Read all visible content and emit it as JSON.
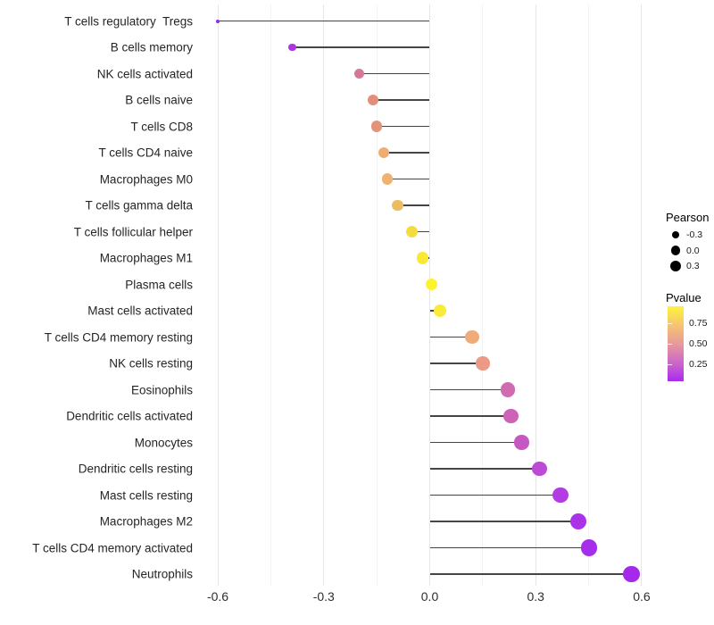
{
  "chart_data": {
    "type": "scatter",
    "subtype": "lollipop",
    "title": "",
    "xlabel": "",
    "ylabel": "",
    "xlim": [
      -0.66,
      0.66
    ],
    "x_ticks": [
      -0.6,
      -0.3,
      0.0,
      0.3,
      0.6
    ],
    "x_tick_labels": [
      "-0.6",
      "-0.3",
      "0.0",
      "0.3",
      "0.6"
    ],
    "grid": "vertical major and minor, no horizontal",
    "legend_position": "right",
    "size_encoding": "Pearson",
    "color_encoding": "Pvalue",
    "points": [
      {
        "label": "T cells regulatory  Tregs",
        "pearson": -0.6,
        "color": "#9b27e6"
      },
      {
        "label": "B cells memory",
        "pearson": -0.39,
        "color": "#ae36e2"
      },
      {
        "label": "NK cells activated",
        "pearson": -0.2,
        "color": "#d9779b"
      },
      {
        "label": "B cells naive",
        "pearson": -0.16,
        "color": "#e28f7a"
      },
      {
        "label": "T cells CD8",
        "pearson": -0.15,
        "color": "#e4937b"
      },
      {
        "label": "T cells CD4 naive",
        "pearson": -0.13,
        "color": "#efad72"
      },
      {
        "label": "Macrophages M0",
        "pearson": -0.12,
        "color": "#f0b271"
      },
      {
        "label": "T cells gamma delta",
        "pearson": -0.09,
        "color": "#ebbc62"
      },
      {
        "label": "T cells follicular helper",
        "pearson": -0.05,
        "color": "#f4dc40"
      },
      {
        "label": "Macrophages M1",
        "pearson": -0.02,
        "color": "#f8e935"
      },
      {
        "label": "Plasma cells",
        "pearson": 0.005,
        "color": "#fcf32a"
      },
      {
        "label": "Mast cells activated",
        "pearson": 0.03,
        "color": "#f9eb38"
      },
      {
        "label": "T cells CD4 memory resting",
        "pearson": 0.12,
        "color": "#efac79"
      },
      {
        "label": "NK cells resting",
        "pearson": 0.15,
        "color": "#eb9a86"
      },
      {
        "label": "Eosinophils",
        "pearson": 0.22,
        "color": "#d16bb1"
      },
      {
        "label": "Dendritic cells activated",
        "pearson": 0.23,
        "color": "#ce62b7"
      },
      {
        "label": "Monocytes",
        "pearson": 0.26,
        "color": "#c659c1"
      },
      {
        "label": "Dendritic cells resting",
        "pearson": 0.31,
        "color": "#bc4ad4"
      },
      {
        "label": "Mast cells resting",
        "pearson": 0.37,
        "color": "#b23ce1"
      },
      {
        "label": "Macrophages M2",
        "pearson": 0.42,
        "color": "#aa33e7"
      },
      {
        "label": "T cells CD4 memory activated",
        "pearson": 0.45,
        "color": "#a62de9"
      },
      {
        "label": "Neutrophils",
        "pearson": 0.57,
        "color": "#a429ea"
      }
    ]
  },
  "legend": {
    "pearson": {
      "title": "Pearson",
      "entries": [
        {
          "label": "-0.3",
          "radius": 4.2
        },
        {
          "label": "0.0",
          "radius": 5.2
        },
        {
          "label": "0.3",
          "radius": 6.0
        }
      ],
      "dot_color": "#000000"
    },
    "pvalue": {
      "title": "Pvalue",
      "ticks": [
        "0.75",
        "0.50",
        "0.25"
      ],
      "tick_values": [
        0.75,
        0.5,
        0.25
      ],
      "gradient_top_to_bottom": [
        "#fcf43d",
        "#f7c86c",
        "#e7989d",
        "#cb63cd",
        "#a82bf0"
      ],
      "bar_value_range_top_to_bottom": [
        0.957,
        0.043
      ]
    }
  },
  "colors": {
    "background": "#ffffff",
    "stem": "#454545",
    "grid_major": "#e6e6e6",
    "grid_minor": "#f3f3f3",
    "axis_text": "#2e2e2e"
  }
}
